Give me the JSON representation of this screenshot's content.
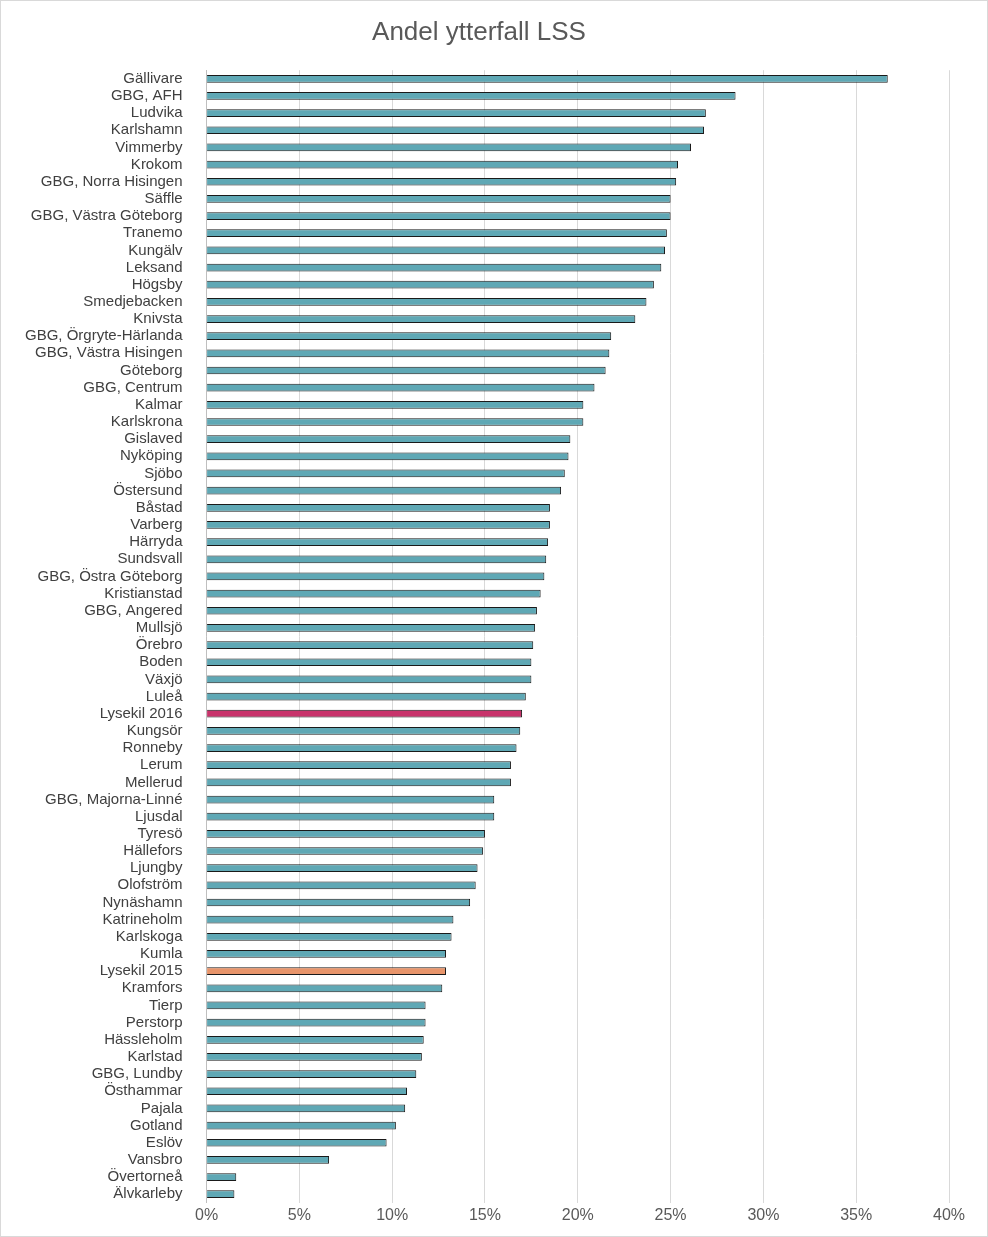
{
  "chart_data": {
    "type": "bar",
    "orientation": "horizontal",
    "title": "Andel ytterfall LSS",
    "categories": [
      "Gällivare",
      "GBG, AFH",
      "Ludvika",
      "Karlshamn",
      "Vimmerby",
      "Krokom",
      "GBG, Norra Hisingen",
      "Säffle",
      "GBG, Västra Göteborg",
      "Tranemo",
      "Kungälv",
      "Leksand",
      "Högsby",
      "Smedjebacken",
      "Knivsta",
      "GBG, Örgryte-Härlanda",
      "GBG, Västra Hisingen",
      "Göteborg",
      "GBG, Centrum",
      "Kalmar",
      "Karlskrona",
      "Gislaved",
      "Nyköping",
      "Sjöbo",
      "Östersund",
      "Båstad",
      "Varberg",
      "Härryda",
      "Sundsvall",
      "GBG, Östra Göteborg",
      "Kristianstad",
      "GBG, Angered",
      "Mullsjö",
      "Örebro",
      "Boden",
      "Växjö",
      "Luleå",
      "Lysekil 2016",
      "Kungsör",
      "Ronneby",
      "Lerum",
      "Mellerud",
      "GBG, Majorna-Linné",
      "Ljusdal",
      "Tyresö",
      "Hällefors",
      "Ljungby",
      "Olofström",
      "Nynäshamn",
      "Katrineholm",
      "Karlskoga",
      "Kumla",
      "Lysekil 2015",
      "Kramfors",
      "Tierp",
      "Perstorp",
      "Hässleholm",
      "Karlstad",
      "GBG, Lundby",
      "Östhammar",
      "Pajala",
      "Gotland",
      "Eslöv",
      "Vansbro",
      "Övertorneå",
      "Älvkarleby"
    ],
    "values": [
      36.7,
      28.5,
      26.9,
      26.8,
      26.1,
      25.4,
      25.3,
      25.0,
      25.0,
      24.8,
      24.7,
      24.5,
      24.1,
      23.7,
      23.1,
      21.8,
      21.7,
      21.5,
      20.9,
      20.3,
      20.3,
      19.6,
      19.5,
      19.3,
      19.1,
      18.5,
      18.5,
      18.4,
      18.3,
      18.2,
      18.0,
      17.8,
      17.7,
      17.6,
      17.5,
      17.5,
      17.2,
      17.0,
      16.9,
      16.7,
      16.4,
      16.4,
      15.5,
      15.5,
      15.0,
      14.9,
      14.6,
      14.5,
      14.2,
      13.3,
      13.2,
      12.9,
      12.9,
      12.7,
      11.8,
      11.8,
      11.7,
      11.6,
      11.3,
      10.8,
      10.7,
      10.2,
      9.7,
      6.6,
      1.6,
      1.5
    ],
    "colors": [
      "#5fa8b5",
      "#5fa8b5",
      "#5fa8b5",
      "#5fa8b5",
      "#5fa8b5",
      "#5fa8b5",
      "#5fa8b5",
      "#5fa8b5",
      "#5fa8b5",
      "#5fa8b5",
      "#5fa8b5",
      "#5fa8b5",
      "#5fa8b5",
      "#5fa8b5",
      "#5fa8b5",
      "#5fa8b5",
      "#5fa8b5",
      "#5fa8b5",
      "#5fa8b5",
      "#5fa8b5",
      "#5fa8b5",
      "#5fa8b5",
      "#5fa8b5",
      "#5fa8b5",
      "#5fa8b5",
      "#5fa8b5",
      "#5fa8b5",
      "#5fa8b5",
      "#5fa8b5",
      "#5fa8b5",
      "#5fa8b5",
      "#5fa8b5",
      "#5fa8b5",
      "#5fa8b5",
      "#5fa8b5",
      "#5fa8b5",
      "#5fa8b5",
      "#c8336b",
      "#5fa8b5",
      "#5fa8b5",
      "#5fa8b5",
      "#5fa8b5",
      "#5fa8b5",
      "#5fa8b5",
      "#5fa8b5",
      "#5fa8b5",
      "#5fa8b5",
      "#5fa8b5",
      "#5fa8b5",
      "#5fa8b5",
      "#5fa8b5",
      "#5fa8b5",
      "#e8956b",
      "#5fa8b5",
      "#5fa8b5",
      "#5fa8b5",
      "#5fa8b5",
      "#5fa8b5",
      "#5fa8b5",
      "#5fa8b5",
      "#5fa8b5",
      "#5fa8b5",
      "#5fa8b5",
      "#5fa8b5",
      "#5fa8b5",
      "#5fa8b5"
    ],
    "xlim": [
      0,
      40
    ],
    "xticks": [
      {
        "value": 0,
        "label": "0%"
      },
      {
        "value": 5,
        "label": "5%"
      },
      {
        "value": 10,
        "label": "10%"
      },
      {
        "value": 15,
        "label": "15%"
      },
      {
        "value": 20,
        "label": "20%"
      },
      {
        "value": 25,
        "label": "25%"
      },
      {
        "value": 30,
        "label": "30%"
      },
      {
        "value": 35,
        "label": "35%"
      },
      {
        "value": 40,
        "label": "40%"
      }
    ],
    "grid": true
  }
}
